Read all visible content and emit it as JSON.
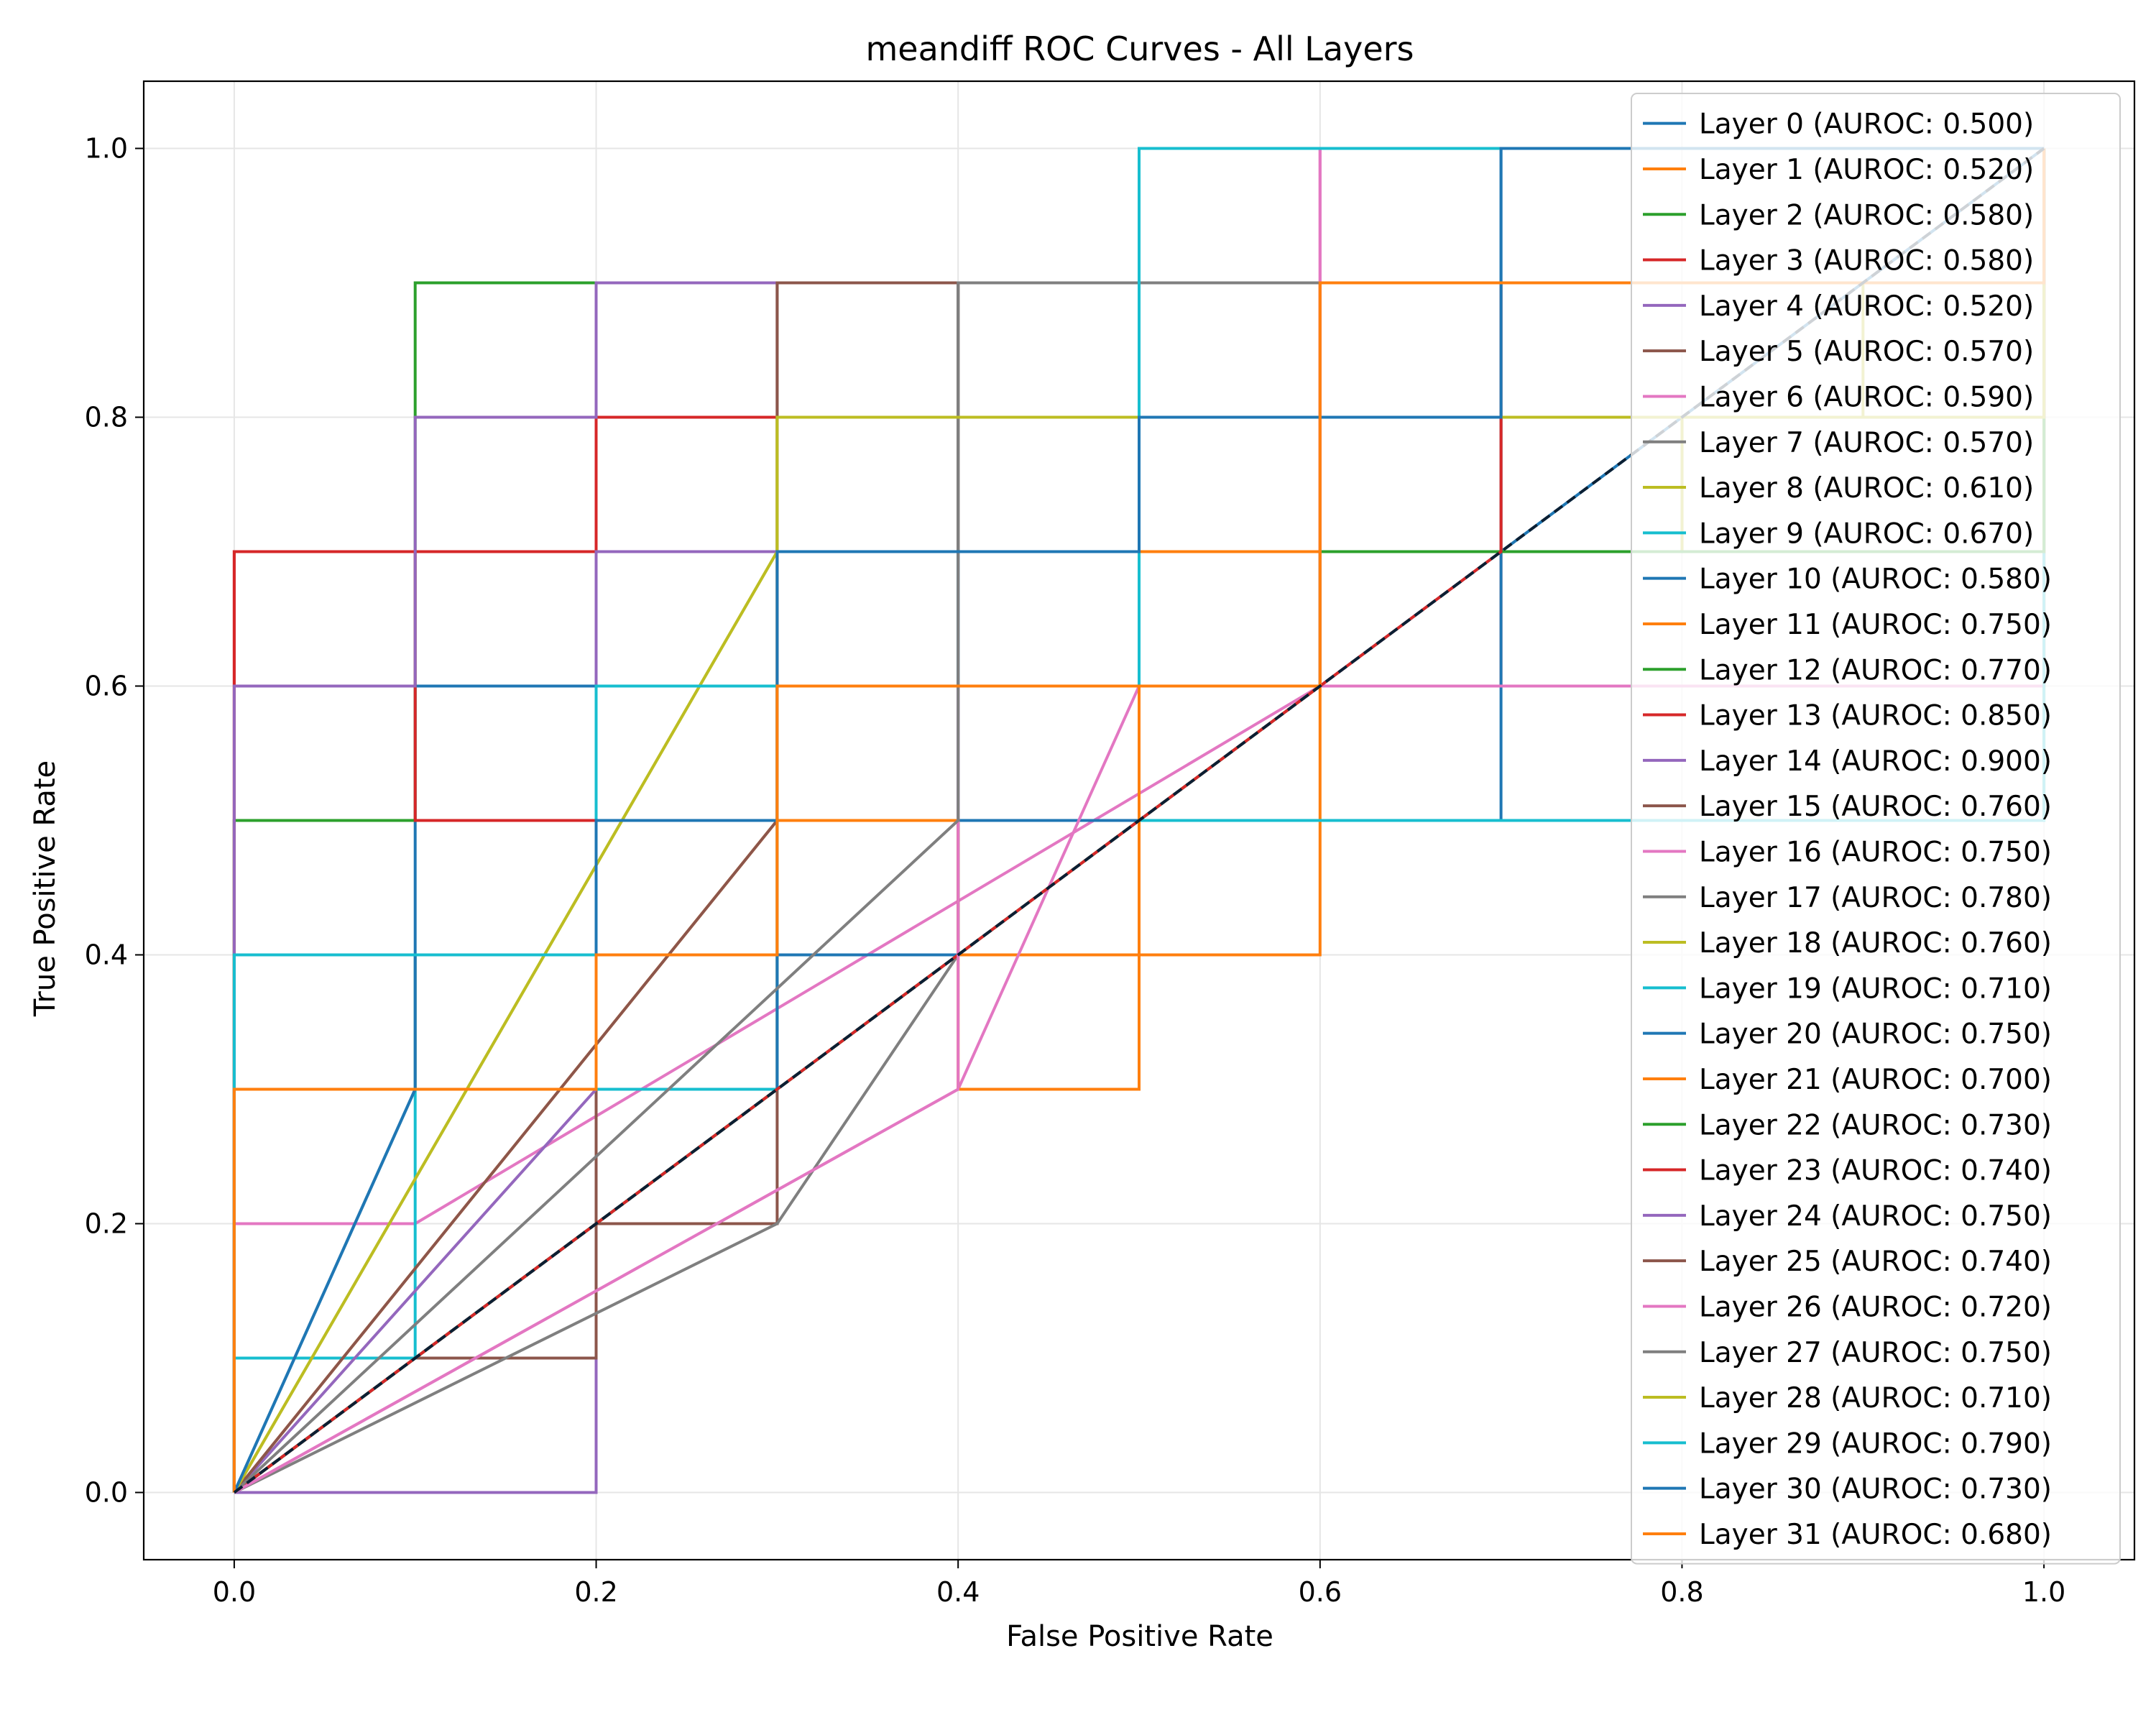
{
  "chart_data": {
    "type": "line",
    "title": "meandiff ROC Curves - All Layers",
    "xlabel": "False Positive Rate",
    "ylabel": "True Positive Rate",
    "xlim": [
      -0.05,
      1.05
    ],
    "ylim": [
      -0.05,
      1.05
    ],
    "xticks": [
      0.0,
      0.2,
      0.4,
      0.6,
      0.8,
      1.0
    ],
    "yticks": [
      0.0,
      0.2,
      0.4,
      0.6,
      0.8,
      1.0
    ],
    "xtick_labels": [
      "0.0",
      "0.2",
      "0.4",
      "0.6",
      "0.8",
      "1.0"
    ],
    "ytick_labels": [
      "0.0",
      "0.2",
      "0.4",
      "0.6",
      "0.8",
      "1.0"
    ],
    "grid": true,
    "legend_position": "upper-right",
    "diagonal": {
      "x": [
        0,
        1
      ],
      "y": [
        0,
        1
      ],
      "style": "dashed",
      "color": "#0b1f33"
    },
    "series": [
      {
        "name": "Layer 0 (AUROC: 0.500)",
        "color": "#1f77b4",
        "x": [
          0,
          0.5,
          0.5,
          1,
          1
        ],
        "y": [
          0,
          0.5,
          0.5,
          1,
          1
        ]
      },
      {
        "name": "Layer 1 (AUROC: 0.520)",
        "color": "#ff7f0e",
        "x": [
          0,
          0,
          0.1,
          0.1,
          0.6,
          0.6,
          1,
          1
        ],
        "y": [
          0,
          0.3,
          0.3,
          0.4,
          0.4,
          0.9,
          0.9,
          1
        ]
      },
      {
        "name": "Layer 2 (AUROC: 0.580)",
        "color": "#2ca02c",
        "x": [
          0,
          0,
          0.1,
          0.1,
          1,
          1
        ],
        "y": [
          0,
          0.5,
          0.5,
          0.5,
          0.5,
          1
        ]
      },
      {
        "name": "Layer 3 (AUROC: 0.580)",
        "color": "#d62728",
        "x": [
          0,
          0,
          0.2,
          0.2,
          0.7,
          0.7,
          1,
          1
        ],
        "y": [
          0,
          0.7,
          0.7,
          0.8,
          0.8,
          0.6,
          0.6,
          1
        ]
      },
      {
        "name": "Layer 4 (AUROC: 0.520)",
        "color": "#9467bd",
        "x": [
          0,
          0.2,
          0.2,
          0.5,
          0.5,
          1,
          1
        ],
        "y": [
          0,
          0,
          0.7,
          0.7,
          0.8,
          0.8,
          1
        ]
      },
      {
        "name": "Layer 5 (AUROC: 0.570)",
        "color": "#8c564b",
        "x": [
          0,
          0.1,
          0.1,
          0.2,
          0.2,
          0.3,
          0.3,
          0.7,
          0.7,
          1,
          1
        ],
        "y": [
          0,
          0.1,
          0.1,
          0.1,
          0.2,
          0.2,
          0.9,
          0.9,
          0.7,
          0.7,
          1
        ]
      },
      {
        "name": "Layer 6 (AUROC: 0.590)",
        "color": "#e377c2",
        "x": [
          0,
          0,
          0.1,
          0.1,
          0.6,
          0.6,
          1,
          1
        ],
        "y": [
          0,
          0.2,
          0.2,
          0.2,
          0.6,
          1,
          1,
          1
        ]
      },
      {
        "name": "Layer 7 (AUROC: 0.570)",
        "color": "#7f7f7f",
        "x": [
          0,
          0.3,
          0.3,
          0.4,
          0.4,
          1,
          1
        ],
        "y": [
          0,
          0.2,
          0.2,
          0.4,
          0.9,
          0.9,
          1
        ]
      },
      {
        "name": "Layer 8 (AUROC: 0.610)",
        "color": "#bcbd22",
        "x": [
          0,
          0.3,
          0.3,
          0.8,
          0.8,
          1,
          1
        ],
        "y": [
          0,
          0.3,
          0.8,
          0.8,
          0.7,
          0.7,
          1
        ]
      },
      {
        "name": "Layer 9 (AUROC: 0.670)",
        "color": "#17becf",
        "x": [
          0,
          0,
          0.1,
          0.1,
          0.2,
          0.2,
          0.5,
          0.5,
          1,
          1
        ],
        "y": [
          0,
          0.1,
          0.1,
          0.4,
          0.4,
          0.6,
          0.6,
          1,
          1,
          1
        ]
      },
      {
        "name": "Layer 10 (AUROC: 0.580)",
        "color": "#1f77b4",
        "x": [
          0,
          0.1,
          0.1,
          0.2,
          0.2,
          0.7,
          0.7,
          1,
          1
        ],
        "y": [
          0,
          0.3,
          0.6,
          0.6,
          0.5,
          0.5,
          1,
          1,
          1
        ]
      },
      {
        "name": "Layer 11 (AUROC: 0.750)",
        "color": "#ff7f0e",
        "x": [
          0,
          0,
          0.3,
          0.3,
          0.6,
          0.6,
          1,
          1
        ],
        "y": [
          0,
          0.4,
          0.4,
          0.6,
          0.6,
          0.9,
          0.9,
          1
        ]
      },
      {
        "name": "Layer 12 (AUROC: 0.770)",
        "color": "#2ca02c",
        "x": [
          0,
          0,
          0.1,
          0.1,
          1,
          1
        ],
        "y": [
          0,
          0.5,
          0.5,
          0.9,
          0.9,
          1
        ]
      },
      {
        "name": "Layer 13 (AUROC: 0.850)",
        "color": "#d62728",
        "x": [
          0,
          0,
          0.1,
          0.1,
          0.2,
          0.2,
          0.7,
          0.7,
          1,
          1
        ],
        "y": [
          0,
          0.7,
          0.7,
          0.5,
          0.5,
          0.8,
          0.8,
          0.9,
          0.9,
          1
        ]
      },
      {
        "name": "Layer 14 (AUROC: 0.900)",
        "color": "#9467bd",
        "x": [
          0,
          0,
          0.1,
          0.1,
          0.2,
          0.2,
          1,
          1
        ],
        "y": [
          0,
          0.6,
          0.6,
          0.8,
          0.8,
          0.9,
          0.9,
          1
        ]
      },
      {
        "name": "Layer 15 (AUROC: 0.760)",
        "color": "#8c564b",
        "x": [
          0,
          0.2,
          0.2,
          0.4,
          0.4,
          1,
          1
        ],
        "y": [
          0,
          0.2,
          0.7,
          0.7,
          0.9,
          0.9,
          1
        ]
      },
      {
        "name": "Layer 16 (AUROC: 0.750)",
        "color": "#e377c2",
        "x": [
          0,
          0.4,
          0.4,
          0.5,
          0.5,
          0.6,
          0.6,
          1,
          1
        ],
        "y": [
          0,
          0.3,
          0.3,
          0.6,
          0.6,
          0.6,
          0.6,
          0.6,
          1
        ]
      },
      {
        "name": "Layer 17 (AUROC: 0.780)",
        "color": "#7f7f7f",
        "x": [
          0,
          0.4,
          0.4,
          0.5,
          0.5,
          1,
          1
        ],
        "y": [
          0,
          0.4,
          0.9,
          0.9,
          0.9,
          0.9,
          1
        ]
      },
      {
        "name": "Layer 18 (AUROC: 0.760)",
        "color": "#bcbd22",
        "x": [
          0,
          0.3,
          0.3,
          0.9,
          0.9,
          1,
          1
        ],
        "y": [
          0,
          0.7,
          0.8,
          0.8,
          0.9,
          0.9,
          1
        ]
      },
      {
        "name": "Layer 19 (AUROC: 0.710)",
        "color": "#17becf",
        "x": [
          0,
          0,
          0.3,
          0.3,
          0.5,
          0.5,
          1,
          1
        ],
        "y": [
          0,
          0.3,
          0.3,
          0.6,
          0.6,
          0.5,
          0.5,
          1
        ]
      },
      {
        "name": "Layer 20 (AUROC: 0.750)",
        "color": "#1f77b4",
        "x": [
          0,
          0.3,
          0.3,
          0.4,
          0.4,
          1,
          1
        ],
        "y": [
          0,
          0.3,
          0.4,
          0.4,
          0.7,
          0.7,
          1
        ]
      },
      {
        "name": "Layer 21 (AUROC: 0.700)",
        "color": "#ff7f0e",
        "x": [
          0,
          0.3,
          0.3,
          0.4,
          0.4,
          0.5,
          0.5,
          1,
          1
        ],
        "y": [
          0,
          0.5,
          0.5,
          0.5,
          0.3,
          0.3,
          0.7,
          0.7,
          1
        ]
      },
      {
        "name": "Layer 22 (AUROC: 0.730)",
        "color": "#2ca02c",
        "x": [
          0,
          0.6,
          0.6,
          1,
          1
        ],
        "y": [
          0,
          0.6,
          0.7,
          0.7,
          1
        ]
      },
      {
        "name": "Layer 23 (AUROC: 0.740)",
        "color": "#d62728",
        "x": [
          0,
          0.7,
          0.7,
          1,
          1
        ],
        "y": [
          0,
          0.7,
          0.8,
          0.8,
          1
        ]
      },
      {
        "name": "Layer 24 (AUROC: 0.750)",
        "color": "#9467bd",
        "x": [
          0,
          0.2,
          0.2,
          0.5,
          0.5,
          1,
          1
        ],
        "y": [
          0,
          0.3,
          0.7,
          0.7,
          0.8,
          0.8,
          1
        ]
      },
      {
        "name": "Layer 25 (AUROC: 0.740)",
        "color": "#8c564b",
        "x": [
          0,
          0.3,
          0.3,
          0.4,
          0.4,
          1,
          1
        ],
        "y": [
          0,
          0.5,
          0.9,
          0.9,
          0.9,
          0.9,
          1
        ]
      },
      {
        "name": "Layer 26 (AUROC: 0.720)",
        "color": "#e377c2",
        "x": [
          0,
          0.4,
          0.4,
          0.6,
          0.6,
          1,
          1
        ],
        "y": [
          0,
          0.3,
          0.6,
          0.6,
          1,
          1,
          1
        ]
      },
      {
        "name": "Layer 27 (AUROC: 0.750)",
        "color": "#7f7f7f",
        "x": [
          0,
          0.4,
          0.4,
          0.6,
          0.6,
          1,
          1
        ],
        "y": [
          0,
          0.5,
          0.9,
          0.9,
          0.9,
          0.9,
          1
        ]
      },
      {
        "name": "Layer 28 (AUROC: 0.710)",
        "color": "#bcbd22",
        "x": [
          0,
          0.3,
          0.3,
          0.8,
          0.8,
          1,
          1
        ],
        "y": [
          0,
          0.7,
          0.8,
          0.8,
          0.8,
          0.8,
          1
        ]
      },
      {
        "name": "Layer 29 (AUROC: 0.790)",
        "color": "#17becf",
        "x": [
          0,
          0,
          0.1,
          0.1,
          0.2,
          0.2,
          0.5,
          0.5,
          1,
          1
        ],
        "y": [
          0,
          0.4,
          0.4,
          0.4,
          0.4,
          0.6,
          0.6,
          1,
          1,
          1
        ]
      },
      {
        "name": "Layer 30 (AUROC: 0.730)",
        "color": "#1f77b4",
        "x": [
          0,
          0.1,
          0.1,
          0.2,
          0.2,
          0.3,
          0.3,
          0.5,
          0.5,
          0.7,
          0.7,
          1,
          1
        ],
        "y": [
          0,
          0.3,
          0.3,
          0.3,
          0.5,
          0.5,
          0.7,
          0.7,
          0.8,
          0.8,
          1,
          1,
          1
        ]
      },
      {
        "name": "Layer 31 (AUROC: 0.680)",
        "color": "#ff7f0e",
        "x": [
          0,
          0,
          0.2,
          0.2,
          0.3,
          0.3,
          0.6,
          0.6,
          1,
          1
        ],
        "y": [
          0,
          0.3,
          0.3,
          0.4,
          0.4,
          0.6,
          0.6,
          0.9,
          0.9,
          1
        ]
      }
    ]
  }
}
